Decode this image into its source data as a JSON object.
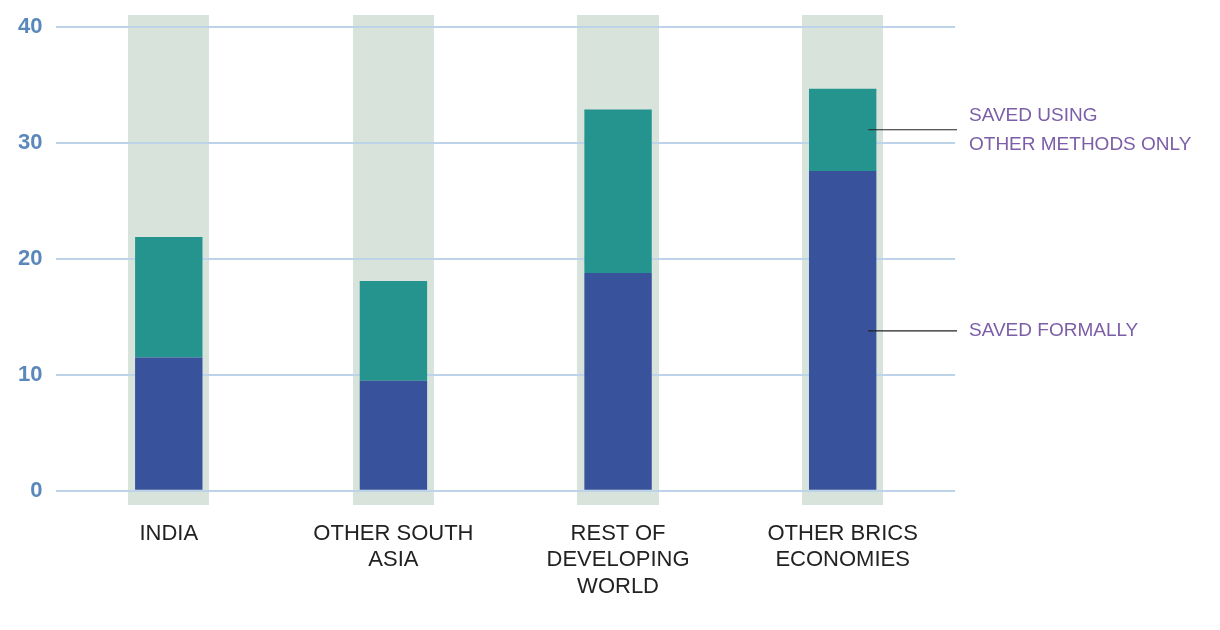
{
  "chart_data": {
    "type": "bar",
    "stacked": true,
    "categories": [
      "INDIA",
      "OTHER SOUTH ASIA",
      "REST OF DEVELOPING WORLD",
      "OTHER BRICS ECONOMIES"
    ],
    "series": [
      {
        "name": "SAVED FORMALLY",
        "color": "#38529c",
        "values": [
          11.5,
          9.5,
          18.8,
          27.6
        ]
      },
      {
        "name": "SAVED USING OTHER METHODS ONLY",
        "color": "#25948f",
        "values": [
          10.4,
          8.6,
          14.1,
          7.1
        ]
      }
    ],
    "ylim": [
      0,
      40
    ],
    "yticks": [
      0,
      10,
      20,
      30,
      40
    ],
    "grid": "y",
    "legend": "right"
  }
}
